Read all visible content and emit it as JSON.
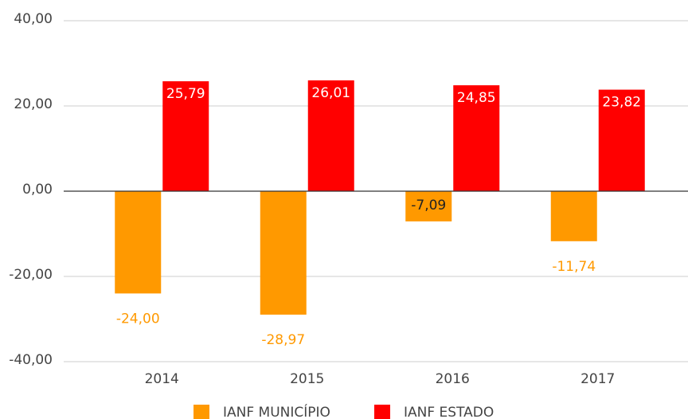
{
  "chart_data": {
    "type": "bar",
    "categories": [
      "2014",
      "2015",
      "2016",
      "2017"
    ],
    "series": [
      {
        "name": "IANF MUNICÍPIO",
        "color": "#ff9900",
        "values": [
          -24.0,
          -28.97,
          -7.09,
          -11.74
        ],
        "value_labels": [
          "-24,00",
          "-28,97",
          "-7,09",
          "-11,74"
        ]
      },
      {
        "name": "IANF ESTADO",
        "color": "#ff0000",
        "values": [
          25.79,
          26.01,
          24.85,
          23.82
        ],
        "value_labels": [
          "25,79",
          "26,01",
          "24,85",
          "23,82"
        ]
      }
    ],
    "ylim": [
      -40,
      40
    ],
    "yticks": [
      {
        "value": -40,
        "label": "-40,00"
      },
      {
        "value": -20,
        "label": "-20,00"
      },
      {
        "value": 0,
        "label": "0,00"
      },
      {
        "value": 20,
        "label": "20,00"
      },
      {
        "value": 40,
        "label": "40,00"
      }
    ],
    "grid": true,
    "legend": "bottom"
  }
}
